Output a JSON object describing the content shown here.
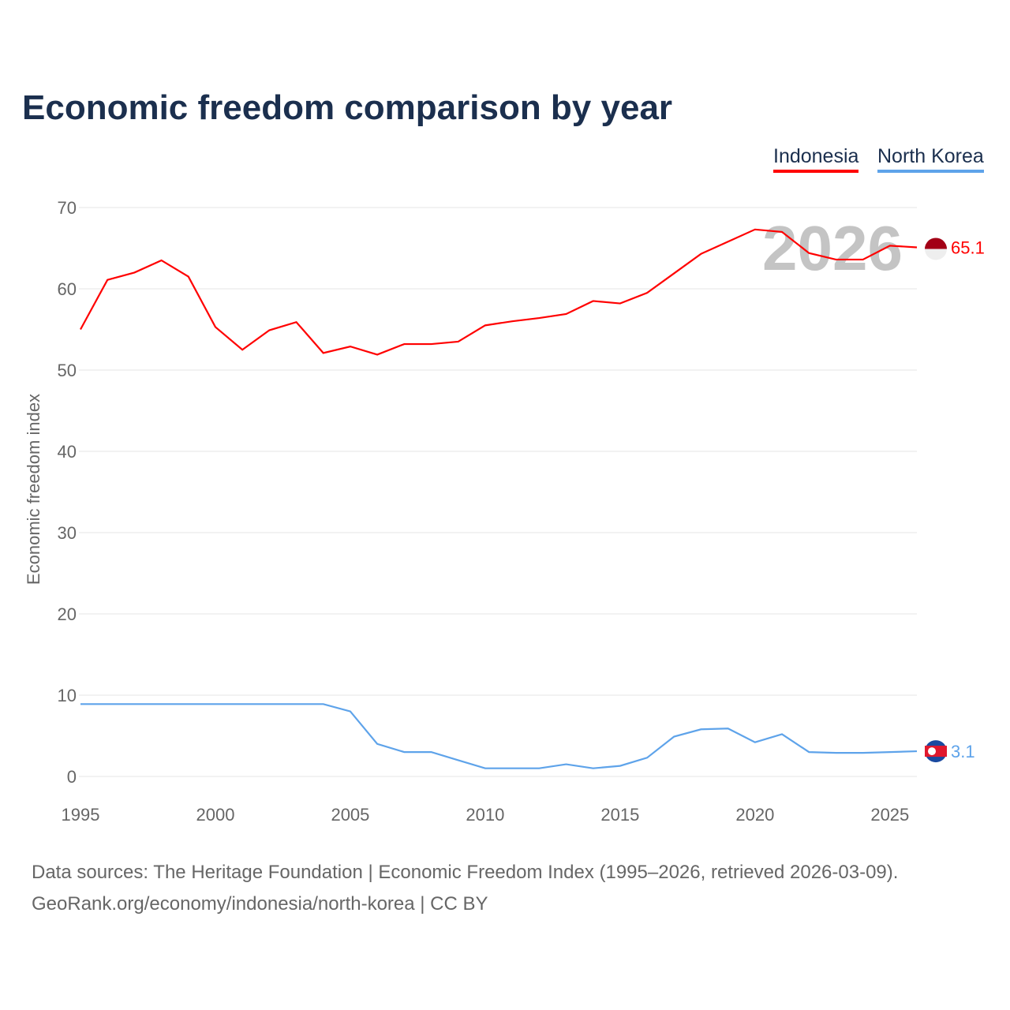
{
  "chart_data": {
    "type": "line",
    "title": "Economic freedom comparison by year",
    "xlabel": "",
    "ylabel": "Economic freedom index",
    "xlim": [
      1995,
      2026
    ],
    "ylim": [
      0,
      70
    ],
    "yticks": [
      0,
      10,
      20,
      30,
      40,
      50,
      60,
      70
    ],
    "xticks": [
      1995,
      2000,
      2005,
      2010,
      2015,
      2020,
      2025
    ],
    "grid": true,
    "legend_position": "top-right",
    "watermark_year": "2026",
    "x": [
      1995,
      1996,
      1997,
      1998,
      1999,
      2000,
      2001,
      2002,
      2003,
      2004,
      2005,
      2006,
      2007,
      2008,
      2009,
      2010,
      2011,
      2012,
      2013,
      2014,
      2015,
      2016,
      2017,
      2018,
      2019,
      2020,
      2021,
      2022,
      2023,
      2024,
      2025,
      2026
    ],
    "series": [
      {
        "name": "Indonesia",
        "color": "#ff0000",
        "end_label": "65.1",
        "values": [
          55.0,
          61.1,
          62.0,
          63.5,
          61.5,
          55.3,
          52.5,
          54.9,
          55.9,
          52.1,
          52.9,
          51.9,
          53.2,
          53.2,
          53.5,
          55.5,
          56.0,
          56.4,
          56.9,
          58.5,
          58.2,
          59.5,
          61.9,
          64.3,
          65.8,
          67.3,
          67.0,
          64.4,
          63.6,
          63.6,
          65.3,
          65.1
        ]
      },
      {
        "name": "North Korea",
        "color": "#5ea3ea",
        "end_label": "3.1",
        "values": [
          8.9,
          8.9,
          8.9,
          8.9,
          8.9,
          8.9,
          8.9,
          8.9,
          8.9,
          8.9,
          8.0,
          4.0,
          3.0,
          3.0,
          2.0,
          1.0,
          1.0,
          1.0,
          1.5,
          1.0,
          1.3,
          2.3,
          4.9,
          5.8,
          5.9,
          4.2,
          5.2,
          3.0,
          2.9,
          2.9,
          3.0,
          3.1
        ]
      }
    ]
  },
  "footer": {
    "line1": "Data sources: The Heritage Foundation | Economic Freedom Index (1995–2026, retrieved 2026-03-09).",
    "line2": "GeoRank.org/economy/indonesia/north-korea | CC BY"
  }
}
